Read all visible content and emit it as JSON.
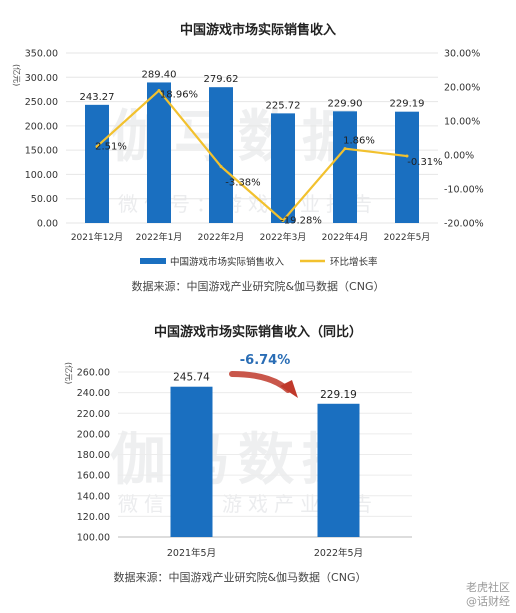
{
  "chart_data": [
    {
      "type": "bar",
      "title": "中国游戏市场实际销售收入",
      "ylabel": "(亿元)",
      "categories": [
        "2021年12月",
        "2022年1月",
        "2022年2月",
        "2022年3月",
        "2022年4月",
        "2022年5月"
      ],
      "ylim": [
        0,
        350
      ],
      "y2lim": [
        -20,
        30
      ],
      "y_ticks": [
        "0.00",
        "50.00",
        "100.00",
        "150.00",
        "200.00",
        "250.00",
        "300.00",
        "350.00"
      ],
      "y2_ticks": [
        "-20.00%",
        "-10.00%",
        "0.00%",
        "10.00%",
        "20.00%",
        "30.00%"
      ],
      "series": [
        {
          "name": "中国游戏市场实际销售收入",
          "type": "bar",
          "color": "#1a6fc0",
          "values": [
            243.27,
            289.4,
            279.62,
            225.72,
            229.9,
            229.19
          ],
          "labels": [
            "243.27",
            "289.40",
            "279.62",
            "225.72",
            "229.90",
            "229.19"
          ]
        },
        {
          "name": "环比增长率",
          "type": "line",
          "axis": "right",
          "color": "#f2c12e",
          "values": [
            2.51,
            18.96,
            -3.38,
            -19.28,
            1.86,
            -0.31
          ],
          "labels": [
            "2.51%",
            "18.96%",
            "-3.38%",
            "-19.28%",
            "1.86%",
            "-0.31%"
          ]
        }
      ],
      "legend": "bottom",
      "source": "数据来源：中国游戏产业研究院&伽马数据（CNG）"
    },
    {
      "type": "bar",
      "title": "中国游戏市场实际销售收入（同比）",
      "ylabel": "(亿元)",
      "categories": [
        "2021年5月",
        "2022年5月"
      ],
      "ylim": [
        100,
        260
      ],
      "y_ticks": [
        "100.00",
        "120.00",
        "140.00",
        "160.00",
        "180.00",
        "200.00",
        "220.00",
        "240.00",
        "260.00"
      ],
      "series": [
        {
          "color": "#1a6fc0",
          "values": [
            245.74,
            229.19
          ],
          "labels": [
            "245.74",
            "229.19"
          ]
        }
      ],
      "annotation": "-6.74%",
      "annotation_color": "#2a6db5",
      "arrow_color": "#c0392b",
      "source": "数据来源：中国游戏产业研究院&伽马数据（CNG）"
    }
  ],
  "watermark": {
    "main": "伽马数据",
    "sub": "微信号：游戏产业报告"
  },
  "corner": {
    "brand": "老虎社区",
    "handle": "@话财经"
  }
}
